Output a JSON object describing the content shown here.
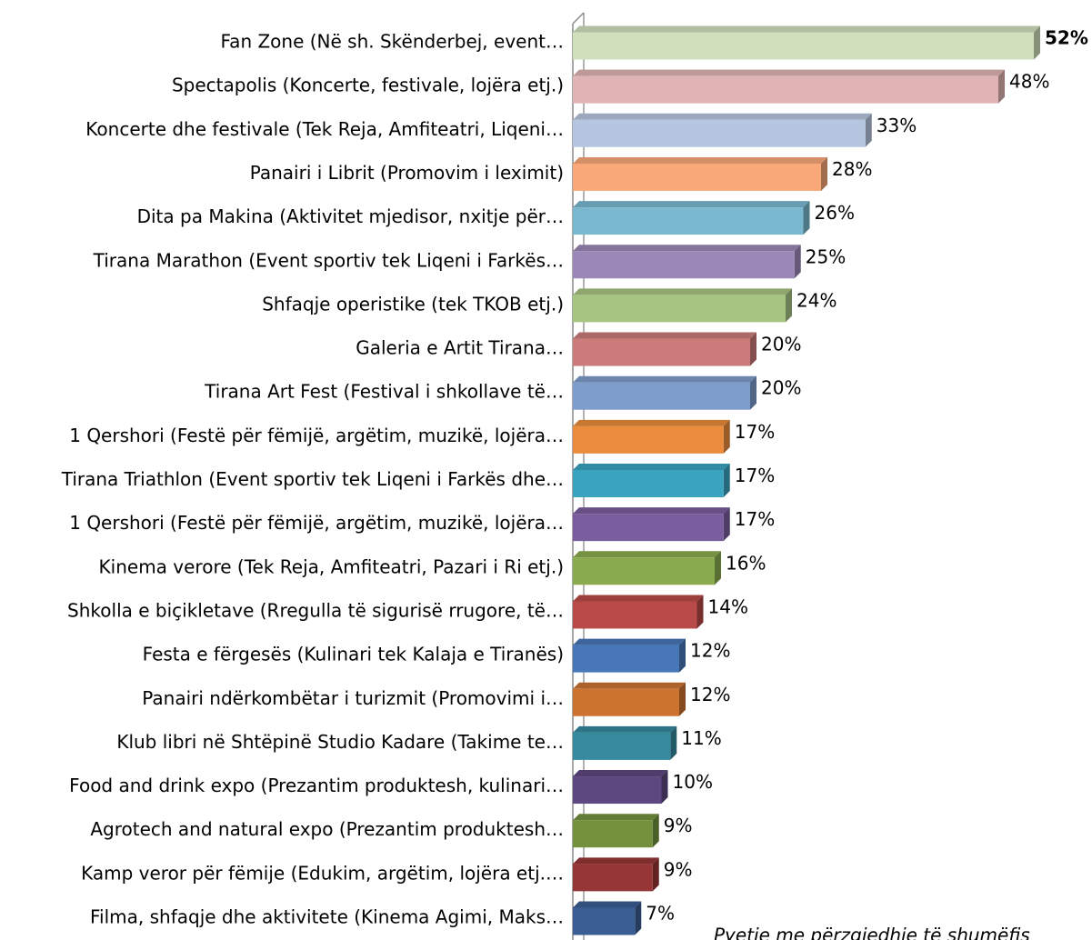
{
  "chart_data": {
    "type": "bar",
    "orientation": "horizontal",
    "categories": [
      "Fan Zone (Në sh. Skënderbej, event…",
      "Spectapolis (Koncerte, festivale, lojëra etj.)",
      "Koncerte dhe festivale (Tek Reja, Amfiteatri, Liqeni…",
      "Panairi i Librit (Promovim i leximit)",
      "Dita pa Makina (Aktivitet mjedisor, nxitje për…",
      "Tirana Marathon (Event sportiv tek Liqeni i Farkës…",
      "Shfaqje operistike (tek TKOB etj.)",
      "Galeria e Artit Tirana…",
      "Tirana Art Fest (Festival i shkollave të…",
      "1 Qershori (Festë për fëmijë, argëtim, muzikë, lojëra…",
      "Tirana Triathlon (Event sportiv tek Liqeni i Farkës dhe…",
      "1 Qershori (Festë për fëmijë, argëtim, muzikë, lojëra…",
      "Kinema verore (Tek Reja, Amfiteatri, Pazari i Ri etj.)",
      "Shkolla e biçikletave (Rregulla të sigurisë rrugore, të…",
      "Festa e fërgesës (Kulinari tek Kalaja e Tiranës)",
      "Panairi ndërkombëtar i turizmit (Promovimi i…",
      "Klub libri në Shtëpinë Studio Kadare (Takime te…",
      "Food and drink expo (Prezantim produktesh, kulinari…",
      "Agrotech and natural expo (Prezantim produktesh…",
      "Kamp veror për fëmije (Edukim, argëtim, lojëra etj.…",
      "Filma, shfaqje dhe aktivitete (Kinema Agimi, Maks…"
    ],
    "values": [
      52,
      48,
      33,
      28,
      26,
      25,
      24,
      20,
      20,
      17,
      17,
      17,
      16,
      14,
      12,
      12,
      11,
      10,
      9,
      9,
      7
    ],
    "value_labels": [
      "52%",
      "48%",
      "33%",
      "28%",
      "26%",
      "25%",
      "24%",
      "20%",
      "20%",
      "17%",
      "17%",
      "17%",
      "16%",
      "14%",
      "12%",
      "12%",
      "11%",
      "10%",
      "9%",
      "9%",
      "7%"
    ],
    "colors": [
      "#d0dfbc",
      "#e0b4b4",
      "#b7c6e0",
      "#f9a87a",
      "#7ab8d0",
      "#9b88b8",
      "#a8c482",
      "#cc7a7a",
      "#7e9ccc",
      "#eb8c3c",
      "#3aa3bf",
      "#7a5d9e",
      "#8aaa4e",
      "#b84a48",
      "#4877b8",
      "#cc7330",
      "#358a9e",
      "#5e4880",
      "#74923e",
      "#963535",
      "#3a5e94"
    ],
    "annotation": "Pyetje me përzgjedhje të shumëfis"
  }
}
